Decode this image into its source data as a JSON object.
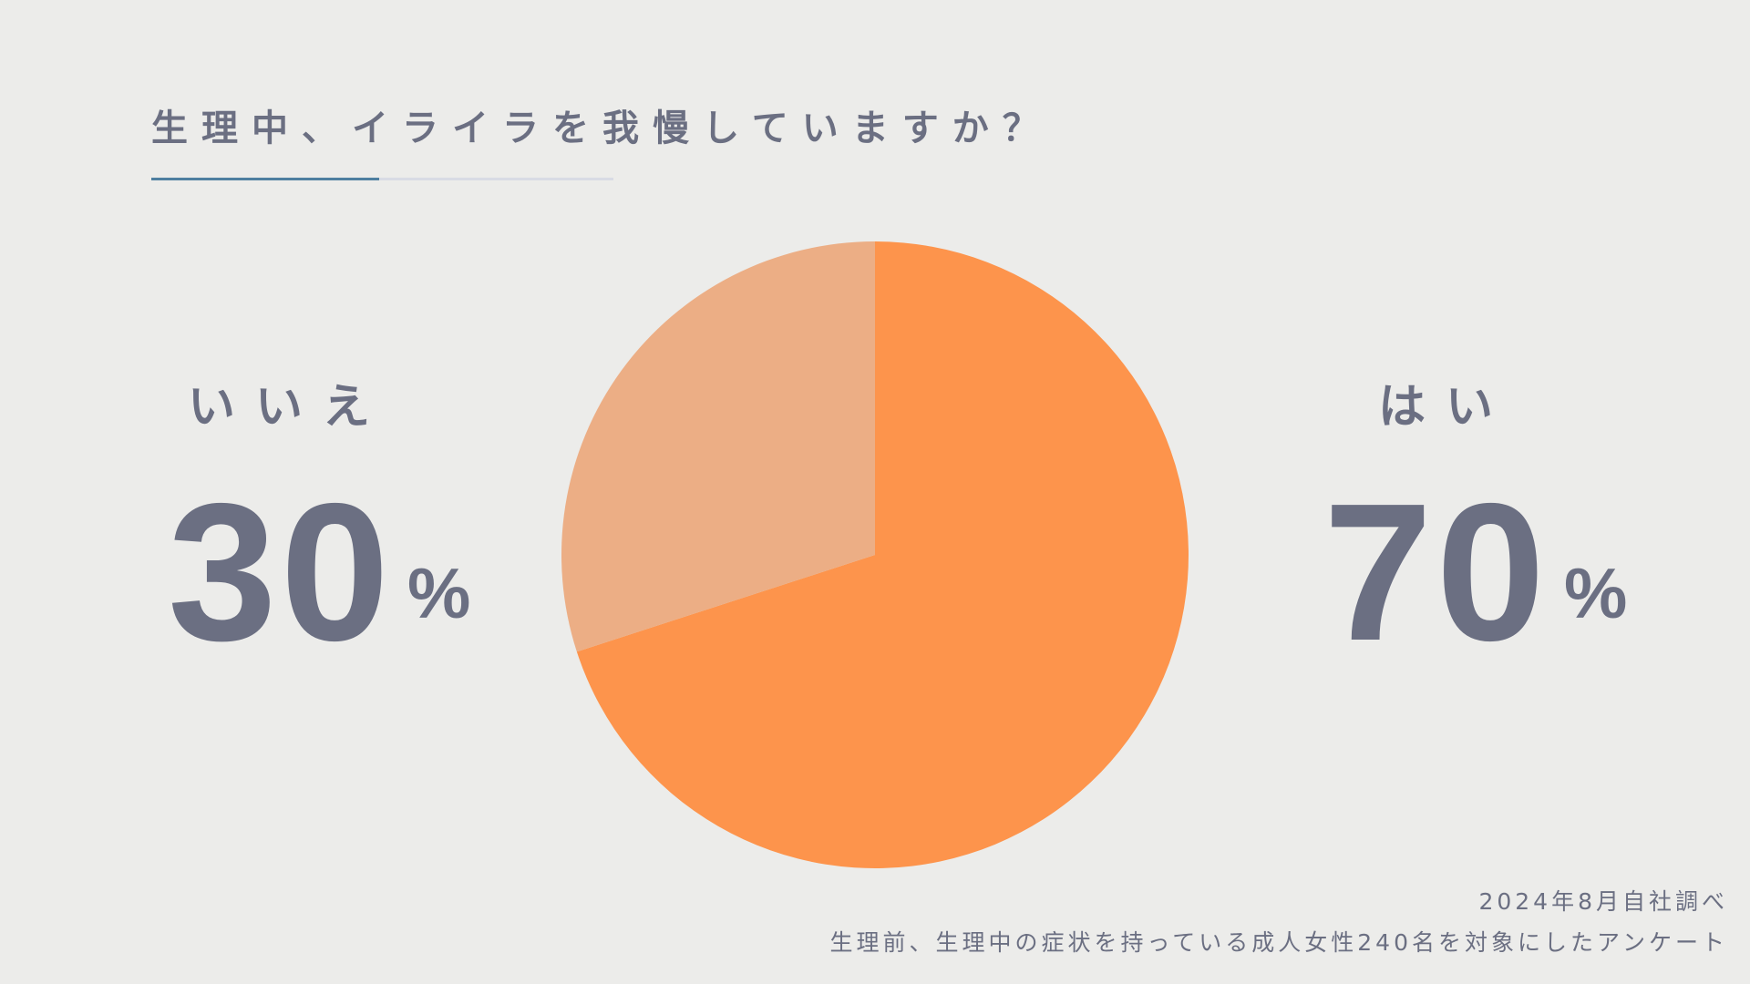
{
  "title": "生理中、イライラを我慢していますか？",
  "chart_data": {
    "type": "pie",
    "title": "生理中、イライラを我慢していますか？",
    "slices": [
      {
        "label": "はい",
        "value": 70,
        "display": "70",
        "color": "#fd944c"
      },
      {
        "label": "いいえ",
        "value": 30,
        "display": "30",
        "color": "#ecae85"
      }
    ],
    "unit": "%",
    "start_angle": "top",
    "direction": "clockwise"
  },
  "footnote": {
    "line1": "2024年8月自社調べ",
    "line2": "生理前、生理中の症状を持っている成人女性240名を対象にしたアンケート"
  },
  "colors": {
    "background": "#ececea",
    "text": "#6b6f82",
    "accent_line": "#4e7fa0"
  }
}
